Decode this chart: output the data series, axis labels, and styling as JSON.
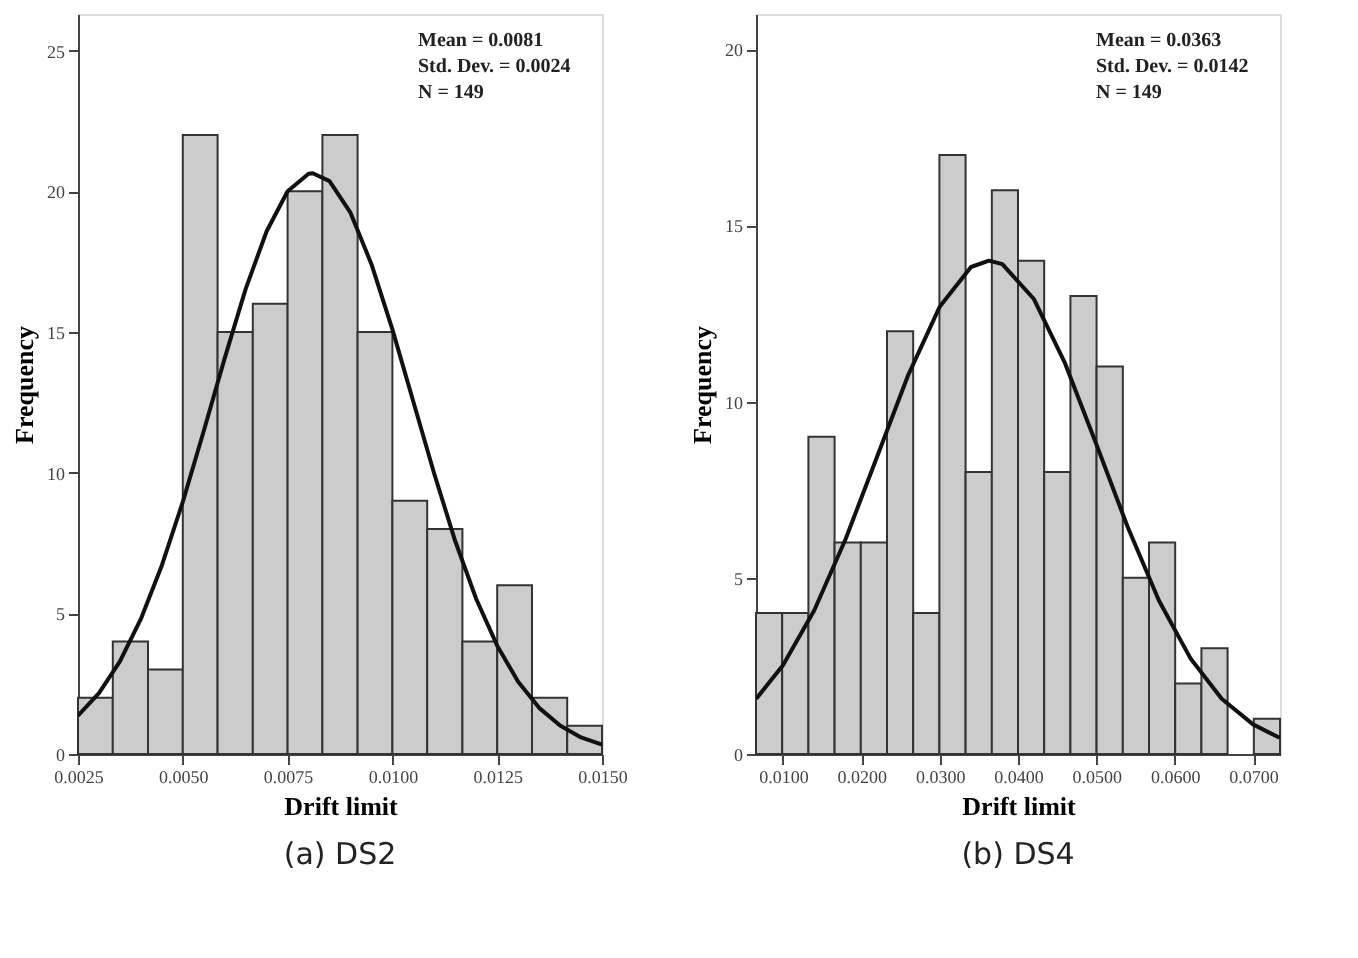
{
  "chart_data": [
    {
      "type": "histogram",
      "title": "(a) DS2",
      "xlabel": "Drift limit",
      "ylabel": "Frequency",
      "color": "#cccccc",
      "grid": false,
      "annotations": [
        "Mean = 0.0081",
        "Std. Dev. = 0.0024",
        "N = 149"
      ],
      "bins": [
        0.0025,
        0.00333,
        0.00417,
        0.005,
        0.00583,
        0.00667,
        0.0075,
        0.00833,
        0.00917,
        0.01,
        0.01083,
        0.01167,
        0.0125,
        0.01333,
        0.01417,
        0.015
      ],
      "values": [
        2,
        4,
        3,
        22,
        15,
        16,
        20,
        22,
        15,
        9,
        8,
        4,
        6,
        2,
        1
      ],
      "series": [
        {
          "type": "line",
          "color": "#111111",
          "x": [
            0.0025,
            0.003,
            0.0035,
            0.004,
            0.0045,
            0.005,
            0.0055,
            0.006,
            0.0065,
            0.007,
            0.0075,
            0.008,
            0.0081,
            0.0085,
            0.009,
            0.0095,
            0.01,
            0.0105,
            0.011,
            0.0115,
            0.012,
            0.0125,
            0.013,
            0.0135,
            0.014,
            0.0145,
            0.015
          ],
          "values": [
            1.36,
            2.16,
            3.29,
            4.8,
            6.7,
            8.96,
            11.48,
            14.07,
            16.53,
            18.58,
            20.0,
            20.62,
            20.64,
            20.36,
            19.24,
            17.41,
            15.09,
            12.52,
            9.95,
            7.56,
            5.51,
            3.85,
            2.57,
            1.64,
            1.01,
            0.59,
            0.33
          ]
        }
      ],
      "xlim": [
        0.0025,
        0.015
      ],
      "ylim": [
        0,
        26.3
      ],
      "xticks": [
        {
          "value": 0.0025,
          "label": "0.0025"
        },
        {
          "value": 0.005,
          "label": "0.0050"
        },
        {
          "value": 0.0075,
          "label": "0.0075"
        },
        {
          "value": 0.01,
          "label": "0.0100"
        },
        {
          "value": 0.0125,
          "label": "0.0125"
        },
        {
          "value": 0.015,
          "label": "0.0150"
        }
      ],
      "yticks": [
        0,
        5,
        10,
        15,
        20,
        25
      ]
    },
    {
      "type": "histogram",
      "title": "(b) DS4",
      "xlabel": "Drift limit",
      "ylabel": "Frequency",
      "color": "#cccccc",
      "grid": false,
      "annotations": [
        "Mean = 0.0363",
        "Std. Dev. = 0.0142",
        "N = 149"
      ],
      "bins": [
        0.00656,
        0.0099,
        0.01325,
        0.01659,
        0.01994,
        0.02328,
        0.02662,
        0.02997,
        0.03331,
        0.03666,
        0.04,
        0.04334,
        0.04669,
        0.05003,
        0.05338,
        0.05672,
        0.06006,
        0.06341,
        0.06675,
        0.0701,
        0.07344
      ],
      "values": [
        4,
        4,
        9,
        6,
        6,
        12,
        4,
        17,
        8,
        16,
        14,
        8,
        13,
        11,
        5,
        6,
        2,
        3,
        0,
        1
      ],
      "series": [
        {
          "type": "line",
          "color": "#111111",
          "x": [
            0.0066,
            0.01,
            0.014,
            0.018,
            0.022,
            0.026,
            0.03,
            0.034,
            0.0363,
            0.038,
            0.042,
            0.046,
            0.05,
            0.054,
            0.058,
            0.062,
            0.066,
            0.07,
            0.0734
          ],
          "values": [
            1.57,
            2.52,
            4.08,
            6.1,
            8.43,
            10.76,
            12.69,
            13.82,
            14.0,
            13.9,
            12.92,
            11.09,
            8.79,
            6.44,
            4.35,
            2.72,
            1.57,
            0.84,
            0.46
          ]
        }
      ],
      "xlim": [
        0.00656,
        0.07344
      ],
      "ylim": [
        0,
        21
      ],
      "xticks": [
        {
          "value": 0.01,
          "label": "0.0100"
        },
        {
          "value": 0.02,
          "label": "0.0200"
        },
        {
          "value": 0.03,
          "label": "0.0300"
        },
        {
          "value": 0.04,
          "label": "0.0400"
        },
        {
          "value": 0.05,
          "label": "0.0500"
        },
        {
          "value": 0.06,
          "label": "0.0600"
        },
        {
          "value": 0.07,
          "label": "0.0700"
        }
      ],
      "yticks": [
        0,
        5,
        10,
        15,
        20
      ]
    }
  ]
}
